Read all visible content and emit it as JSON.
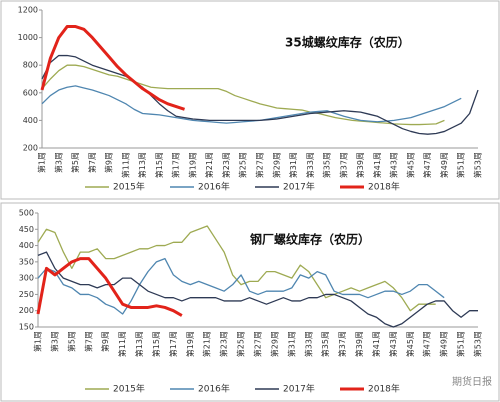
{
  "chart_data": [
    {
      "type": "line",
      "title": "35城螺纹库存（农历）",
      "categories": [
        "第1周",
        null,
        "第3周",
        null,
        "第5周",
        null,
        "第7周",
        null,
        "第9周",
        null,
        "第11周",
        null,
        "第13周",
        null,
        "第15周",
        null,
        "第17周",
        null,
        "第19周",
        null,
        "第21周",
        null,
        "第23周",
        null,
        "第25周",
        null,
        "第27周",
        null,
        "第29周",
        null,
        "第31周",
        null,
        "第33周",
        null,
        "第35周",
        null,
        "第37周",
        null,
        "第39周",
        null,
        "第41周",
        null,
        "第43周",
        null,
        "第45周",
        null,
        "第47周",
        null,
        "第49周",
        null,
        "第51周",
        null,
        "第53周"
      ],
      "ylim": [
        200,
        1200
      ],
      "yticks": [
        200,
        400,
        600,
        800,
        1000,
        1200
      ],
      "grid": false,
      "series": [
        {
          "name": "2015年",
          "color": "#9eaa52",
          "values": [
            630,
            700,
            760,
            800,
            800,
            790,
            770,
            750,
            730,
            720,
            700,
            680,
            660,
            640,
            635,
            630,
            630,
            630,
            630,
            630,
            630,
            630,
            610,
            580,
            560,
            540,
            520,
            505,
            490,
            485,
            480,
            475,
            460,
            450,
            435,
            420,
            410,
            400,
            395,
            390,
            385,
            380,
            375,
            372,
            370,
            370,
            372,
            375,
            400,
            null,
            null,
            null,
            null
          ]
        },
        {
          "name": "2016年",
          "color": "#4f86b0",
          "values": [
            520,
            580,
            620,
            640,
            650,
            635,
            620,
            600,
            580,
            550,
            520,
            480,
            450,
            445,
            440,
            430,
            420,
            410,
            400,
            395,
            390,
            385,
            380,
            385,
            390,
            395,
            400,
            410,
            420,
            430,
            440,
            450,
            460,
            465,
            470,
            450,
            430,
            415,
            400,
            395,
            390,
            395,
            400,
            410,
            420,
            440,
            460,
            480,
            500,
            530,
            560,
            null,
            null
          ]
        },
        {
          "name": "2017年",
          "color": "#2e3a55",
          "values": [
            700,
            820,
            870,
            870,
            860,
            830,
            800,
            780,
            760,
            740,
            720,
            680,
            640,
            580,
            520,
            470,
            430,
            420,
            410,
            405,
            400,
            400,
            400,
            400,
            400,
            400,
            400,
            405,
            410,
            420,
            430,
            440,
            450,
            455,
            460,
            465,
            470,
            465,
            460,
            445,
            430,
            400,
            370,
            340,
            320,
            305,
            300,
            305,
            320,
            350,
            380,
            450,
            620
          ]
        },
        {
          "name": "2018年",
          "color": "#e2231a",
          "width": 3,
          "values": [
            620,
            850,
            1000,
            1080,
            1080,
            1060,
            1000,
            930,
            860,
            790,
            730,
            680,
            630,
            590,
            550,
            520,
            500,
            480,
            null,
            null,
            null,
            null,
            null,
            null,
            null,
            null,
            null,
            null,
            null,
            null,
            null,
            null,
            null,
            null,
            null,
            null,
            null,
            null,
            null,
            null,
            null,
            null,
            null,
            null,
            null,
            null,
            null,
            null,
            null,
            null,
            null,
            null,
            null
          ]
        }
      ]
    },
    {
      "type": "line",
      "title": "钢厂螺纹库存（农历）",
      "categories": [
        "第1周",
        null,
        "第3周",
        null,
        "第5周",
        null,
        "第7周",
        null,
        "第9周",
        null,
        "第11周",
        null,
        "第13周",
        null,
        "第15周",
        null,
        "第17周",
        null,
        "第19周",
        null,
        "第21周",
        null,
        "第23周",
        null,
        "第25周",
        null,
        "第27周",
        null,
        "第29周",
        null,
        "第31周",
        null,
        "第33周",
        null,
        "第35周",
        null,
        "第37周",
        null,
        "第39周",
        null,
        "第41周",
        null,
        "第43周",
        null,
        "第45周",
        null,
        "第47周",
        null,
        "第49周",
        null,
        "第51周",
        null,
        "第53周"
      ],
      "ylim": [
        150,
        500
      ],
      "yticks": [
        150,
        200,
        250,
        300,
        350,
        400,
        450,
        500
      ],
      "grid": false,
      "series": [
        {
          "name": "2015年",
          "color": "#9eaa52",
          "values": [
            410,
            450,
            440,
            380,
            330,
            380,
            380,
            390,
            360,
            360,
            370,
            380,
            390,
            390,
            400,
            400,
            410,
            410,
            440,
            450,
            460,
            420,
            380,
            310,
            280,
            290,
            290,
            320,
            320,
            310,
            300,
            340,
            320,
            280,
            240,
            250,
            260,
            270,
            260,
            270,
            280,
            290,
            270,
            240,
            200,
            220,
            220,
            220,
            null,
            null,
            null,
            null,
            null
          ]
        },
        {
          "name": "2016年",
          "color": "#4f86b0",
          "values": [
            300,
            330,
            320,
            280,
            270,
            250,
            250,
            240,
            220,
            210,
            190,
            230,
            280,
            320,
            350,
            360,
            310,
            290,
            280,
            290,
            280,
            270,
            260,
            280,
            310,
            260,
            250,
            260,
            260,
            260,
            270,
            310,
            300,
            320,
            310,
            260,
            250,
            250,
            250,
            240,
            250,
            260,
            260,
            250,
            260,
            280,
            280,
            260,
            240,
            null,
            null,
            null,
            null
          ]
        },
        {
          "name": "2017年",
          "color": "#2e3a55",
          "values": [
            370,
            380,
            330,
            300,
            290,
            280,
            280,
            270,
            280,
            280,
            300,
            300,
            280,
            260,
            250,
            240,
            240,
            230,
            240,
            240,
            240,
            240,
            230,
            230,
            230,
            240,
            230,
            220,
            230,
            240,
            230,
            230,
            240,
            240,
            250,
            250,
            240,
            230,
            210,
            190,
            180,
            160,
            150,
            160,
            180,
            200,
            220,
            230,
            230,
            200,
            180,
            200,
            200
          ]
        },
        {
          "name": "2018年",
          "color": "#e2231a",
          "width": 3,
          "values": [
            190,
            330,
            310,
            330,
            350,
            360,
            360,
            330,
            300,
            260,
            220,
            210,
            210,
            210,
            215,
            210,
            200,
            185,
            null,
            null,
            null,
            null,
            null,
            null,
            null,
            null,
            null,
            null,
            null,
            null,
            null,
            null,
            null,
            null,
            null,
            null,
            null,
            null,
            null,
            null,
            null,
            null,
            null,
            null,
            null,
            null,
            null,
            null,
            null,
            null,
            null,
            null,
            null
          ]
        }
      ]
    }
  ],
  "watermark": "期货日报"
}
